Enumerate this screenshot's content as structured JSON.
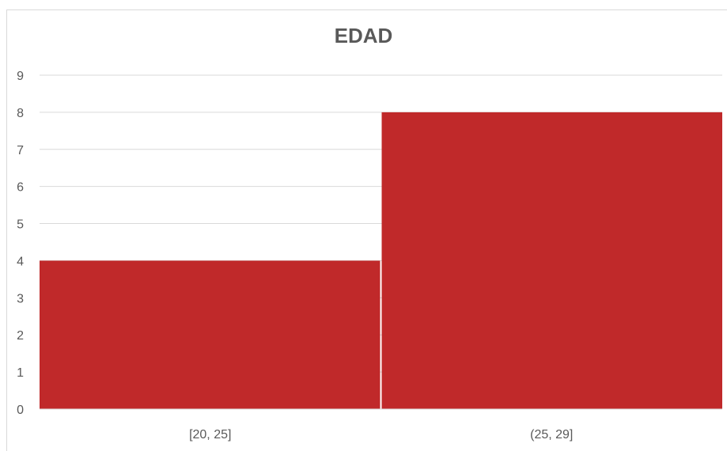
{
  "chart_data": {
    "type": "bar",
    "title": "EDAD",
    "categories": [
      "[20, 25]",
      "(25, 29]"
    ],
    "values": [
      4,
      8
    ],
    "ylim": [
      0,
      9
    ],
    "yticks": [
      0,
      1,
      2,
      3,
      4,
      5,
      6,
      7,
      8,
      9
    ],
    "grid": true,
    "legend": "none",
    "bar_color": "#c0292a",
    "gridline_color": "#d9d9d9",
    "text_color": "#595959"
  }
}
